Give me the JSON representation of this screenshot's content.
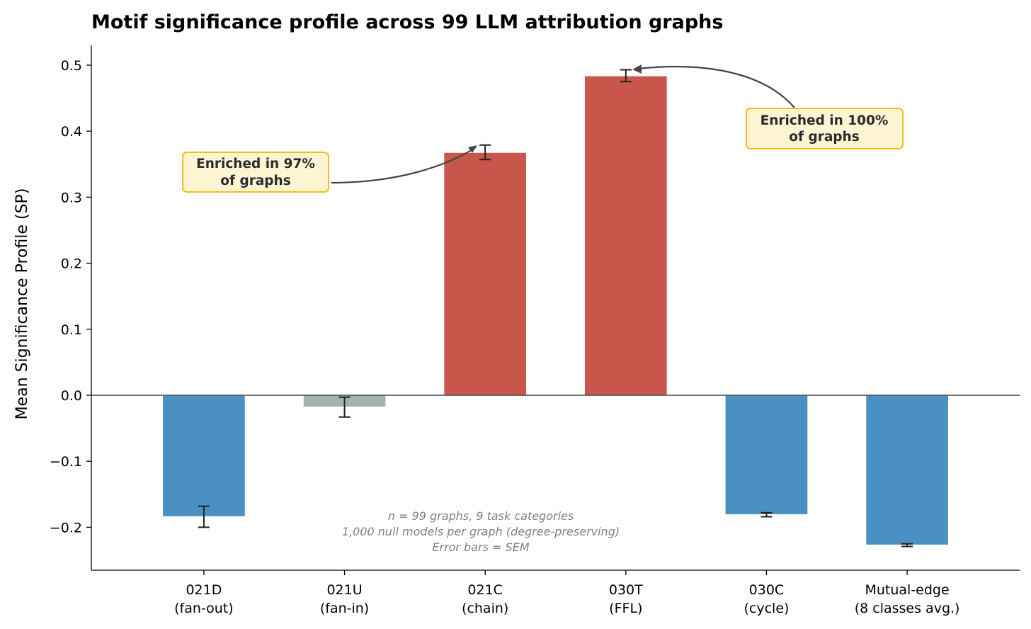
{
  "chart_data": {
    "type": "bar",
    "title": "Motif significance profile across 99 LLM attribution graphs",
    "xlabel": "",
    "ylabel": "Mean Significance Profile (SP)",
    "ylim": [
      -0.265,
      0.53
    ],
    "yticks": [
      {
        "value": 0.5,
        "label": "0.5"
      },
      {
        "value": 0.4,
        "label": "0.4"
      },
      {
        "value": 0.3,
        "label": "0.3"
      },
      {
        "value": 0.2,
        "label": "0.2"
      },
      {
        "value": 0.1,
        "label": "0.1"
      },
      {
        "value": 0.0,
        "label": "0.0"
      },
      {
        "value": -0.1,
        "label": "−0.1"
      },
      {
        "value": -0.2,
        "label": "−0.2"
      }
    ],
    "categories": [
      {
        "line1": "021D",
        "line2": "(fan-out)"
      },
      {
        "line1": "021U",
        "line2": "(fan-in)"
      },
      {
        "line1": "021C",
        "line2": "(chain)"
      },
      {
        "line1": "030T",
        "line2": "(FFL)"
      },
      {
        "line1": "030C",
        "line2": "(cycle)"
      },
      {
        "line1": "Mutual-edge",
        "line2": "(8 classes avg.)"
      }
    ],
    "values": [
      -0.184,
      -0.018,
      0.368,
      0.484,
      -0.181,
      -0.227
    ],
    "errors": [
      0.016,
      0.015,
      0.011,
      0.009,
      0.003,
      0.002
    ],
    "colors": [
      "#4a90c2",
      "#a4b2b2",
      "#c9564b",
      "#c9564b",
      "#4a90c2",
      "#4a90c2"
    ],
    "annotations": [
      {
        "line1": "Enriched in 97%",
        "line2": "of graphs",
        "target_category": 2
      },
      {
        "line1": "Enriched in 100%",
        "line2": "of graphs",
        "target_category": 3
      }
    ],
    "footnote": [
      "n = 99 graphs, 9 task categories",
      "1,000 null models per graph (degree-preserving)",
      "Error bars = SEM"
    ],
    "annotation_box_fill": "#fdf4d2",
    "annotation_box_edge": "#f2bf1c"
  }
}
